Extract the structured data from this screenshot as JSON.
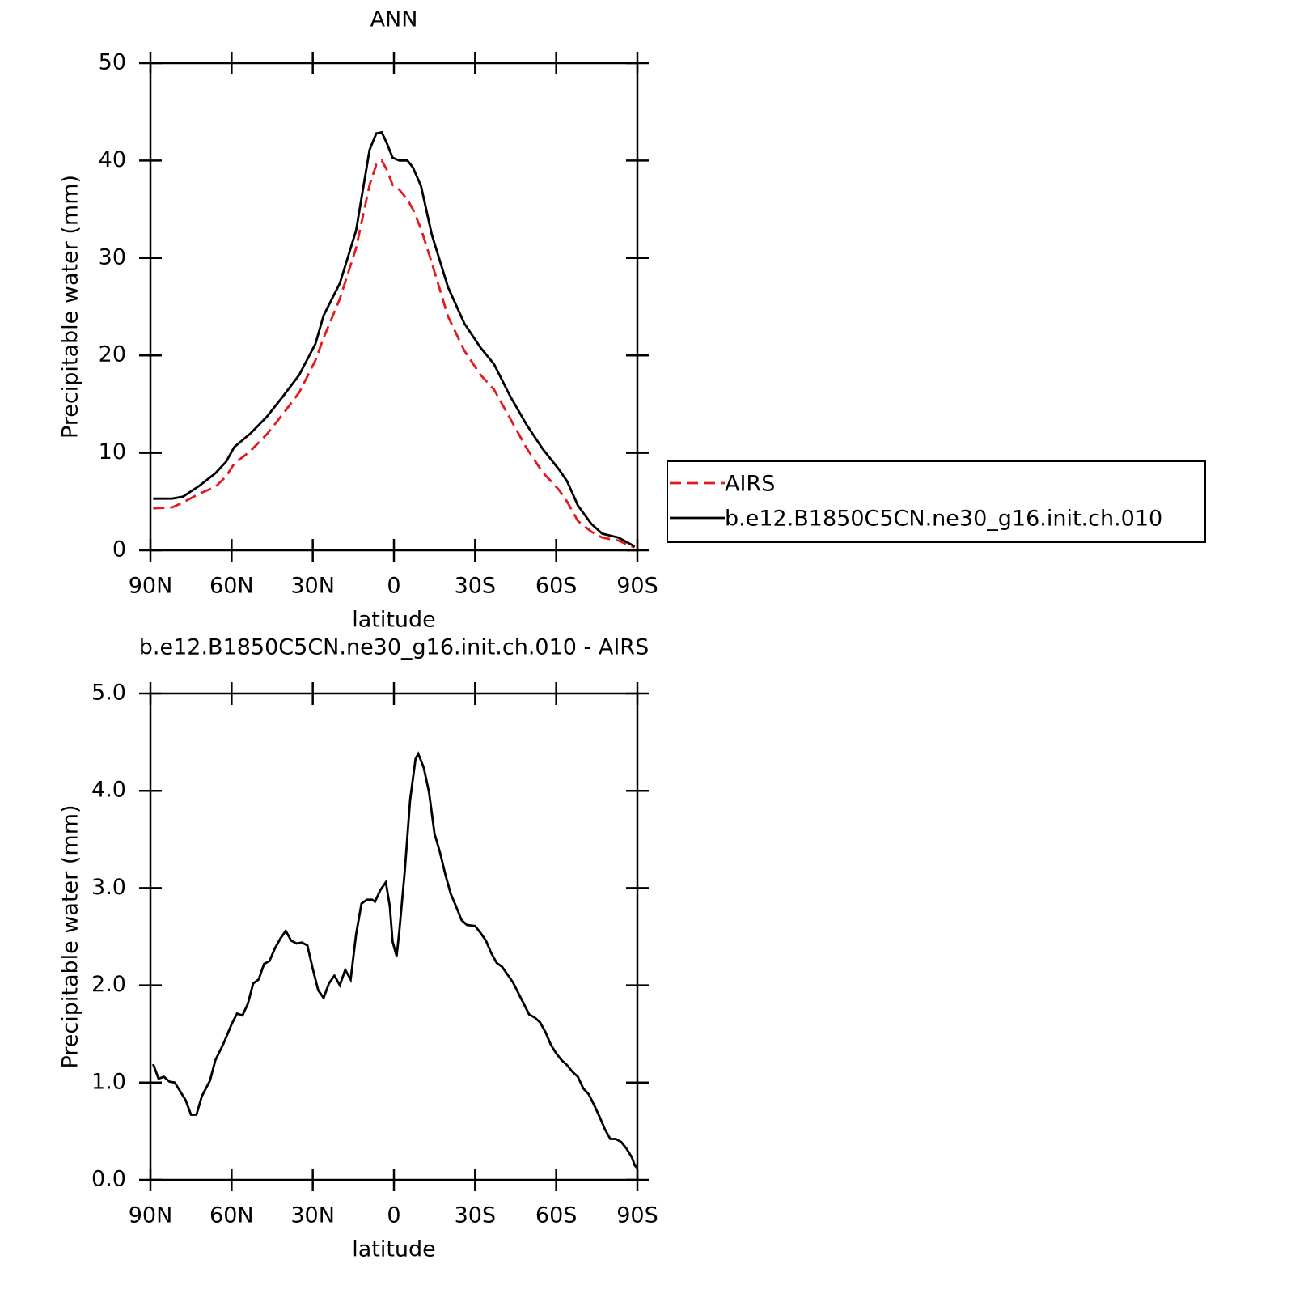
{
  "chart_data": [
    {
      "type": "line",
      "title": "ANN",
      "xlabel": "latitude",
      "ylabel": "Precipitable water (mm)",
      "xlim": [
        90,
        -90
      ],
      "xticks": [
        {
          "value": 90,
          "label": "90N"
        },
        {
          "value": 60,
          "label": "60N"
        },
        {
          "value": 30,
          "label": "30N"
        },
        0,
        {
          "value": -30,
          "label": "30S"
        },
        {
          "value": -60,
          "label": "60S"
        },
        {
          "value": -90,
          "label": "90S"
        }
      ],
      "ylim": [
        0,
        50
      ],
      "yticks": [
        0,
        10,
        20,
        30,
        40,
        50
      ],
      "legend": "right",
      "x": [
        89,
        82,
        78,
        72,
        66,
        62,
        59,
        53,
        47,
        41,
        35,
        29,
        26,
        20,
        14,
        9,
        6.5,
        4.5,
        2.5,
        0.5,
        -2,
        -5,
        -7,
        -10,
        -14,
        -20,
        -26,
        -32,
        -37,
        -43,
        -49,
        -55,
        -61,
        -64,
        -68,
        -73,
        -77,
        -83,
        -87,
        -89
      ],
      "series": [
        {
          "name": "AIRS",
          "color": "#e41a1c",
          "dashed": true,
          "values": [
            4.3,
            4.4,
            4.9,
            5.8,
            6.5,
            7.6,
            8.9,
            10.2,
            11.9,
            14.0,
            16.2,
            19.5,
            21.8,
            25.8,
            31.0,
            37.5,
            39.6,
            40.0,
            39.0,
            37.5,
            37.0,
            36.0,
            35.0,
            33.0,
            29.5,
            24.0,
            20.5,
            18.0,
            16.5,
            13.5,
            10.5,
            8.0,
            6.2,
            5.0,
            3.0,
            1.9,
            1.3,
            1.0,
            0.5,
            0.3
          ]
        },
        {
          "name": "b.e12.B1850C5CN.ne30_g16.init.ch.010",
          "color": "#000000",
          "dashed": false,
          "values": [
            5.3,
            5.3,
            5.5,
            6.6,
            7.9,
            9.1,
            10.6,
            12.0,
            13.7,
            15.8,
            18.0,
            21.2,
            24.1,
            27.4,
            32.8,
            41.1,
            42.8,
            42.9,
            41.7,
            40.3,
            40.0,
            40.0,
            39.3,
            37.4,
            32.4,
            27.0,
            23.3,
            20.8,
            19.1,
            15.8,
            12.9,
            10.4,
            8.3,
            7.1,
            4.6,
            2.7,
            1.7,
            1.3,
            0.7,
            0.4
          ]
        }
      ]
    },
    {
      "type": "line",
      "title": "b.e12.B1850C5CN.ne30_g16.init.ch.010 - AIRS",
      "xlabel": "latitude",
      "ylabel": "Precipitable water (mm)",
      "xlim": [
        90,
        -90
      ],
      "xticks": [
        {
          "value": 90,
          "label": "90N"
        },
        {
          "value": 60,
          "label": "60N"
        },
        {
          "value": 30,
          "label": "30N"
        },
        0,
        {
          "value": -30,
          "label": "30S"
        },
        {
          "value": -60,
          "label": "60S"
        },
        {
          "value": -90,
          "label": "90S"
        }
      ],
      "ylim": [
        0,
        5
      ],
      "yticks": [
        {
          "value": 0,
          "label": "0.0"
        },
        {
          "value": 1,
          "label": "1.0"
        },
        {
          "value": 2,
          "label": "2.0"
        },
        {
          "value": 3,
          "label": "3.0"
        },
        {
          "value": 4,
          "label": "4.0"
        },
        {
          "value": 5,
          "label": "5.0"
        }
      ],
      "x": [
        89,
        87,
        85,
        83,
        81,
        77,
        75,
        73,
        71,
        68,
        66,
        63,
        60,
        58,
        56,
        54,
        52,
        50,
        48,
        46,
        44,
        42,
        40,
        38,
        36,
        34,
        32,
        30,
        28,
        26,
        24,
        22,
        20,
        18,
        16,
        14,
        12,
        10,
        8,
        7,
        5,
        3,
        1.5,
        0.5,
        -1,
        -2,
        -4,
        -6,
        -8,
        -9,
        -11,
        -13,
        -15,
        -17,
        -19,
        -21,
        -23,
        -25,
        -27,
        -30,
        -32,
        -34,
        -36,
        -38,
        -40,
        -42,
        -44,
        -46,
        -48,
        -50,
        -52,
        -54,
        -56,
        -58,
        -60,
        -62,
        -64,
        -66,
        -68,
        -70,
        -72,
        -74,
        -76,
        -78,
        -80,
        -82,
        -84,
        -86,
        -88,
        -89,
        -90
      ],
      "color": "#000000",
      "values": [
        1.19,
        1.04,
        1.06,
        1.01,
        1.0,
        0.82,
        0.67,
        0.67,
        0.86,
        1.02,
        1.23,
        1.4,
        1.6,
        1.71,
        1.69,
        1.81,
        2.02,
        2.06,
        2.22,
        2.25,
        2.38,
        2.48,
        2.56,
        2.46,
        2.43,
        2.44,
        2.41,
        2.17,
        1.95,
        1.87,
        2.02,
        2.1,
        2.0,
        2.16,
        2.06,
        2.52,
        2.84,
        2.88,
        2.88,
        2.86,
        2.98,
        3.06,
        2.81,
        2.45,
        2.3,
        2.56,
        3.17,
        3.91,
        4.33,
        4.38,
        4.24,
        3.98,
        3.56,
        3.37,
        3.14,
        2.94,
        2.81,
        2.67,
        2.62,
        2.61,
        2.54,
        2.46,
        2.33,
        2.23,
        2.19,
        2.11,
        2.03,
        1.92,
        1.81,
        1.7,
        1.67,
        1.62,
        1.52,
        1.39,
        1.3,
        1.23,
        1.18,
        1.11,
        1.06,
        0.94,
        0.88,
        0.77,
        0.65,
        0.52,
        0.42,
        0.42,
        0.39,
        0.32,
        0.23,
        0.15,
        0.12
      ]
    }
  ]
}
